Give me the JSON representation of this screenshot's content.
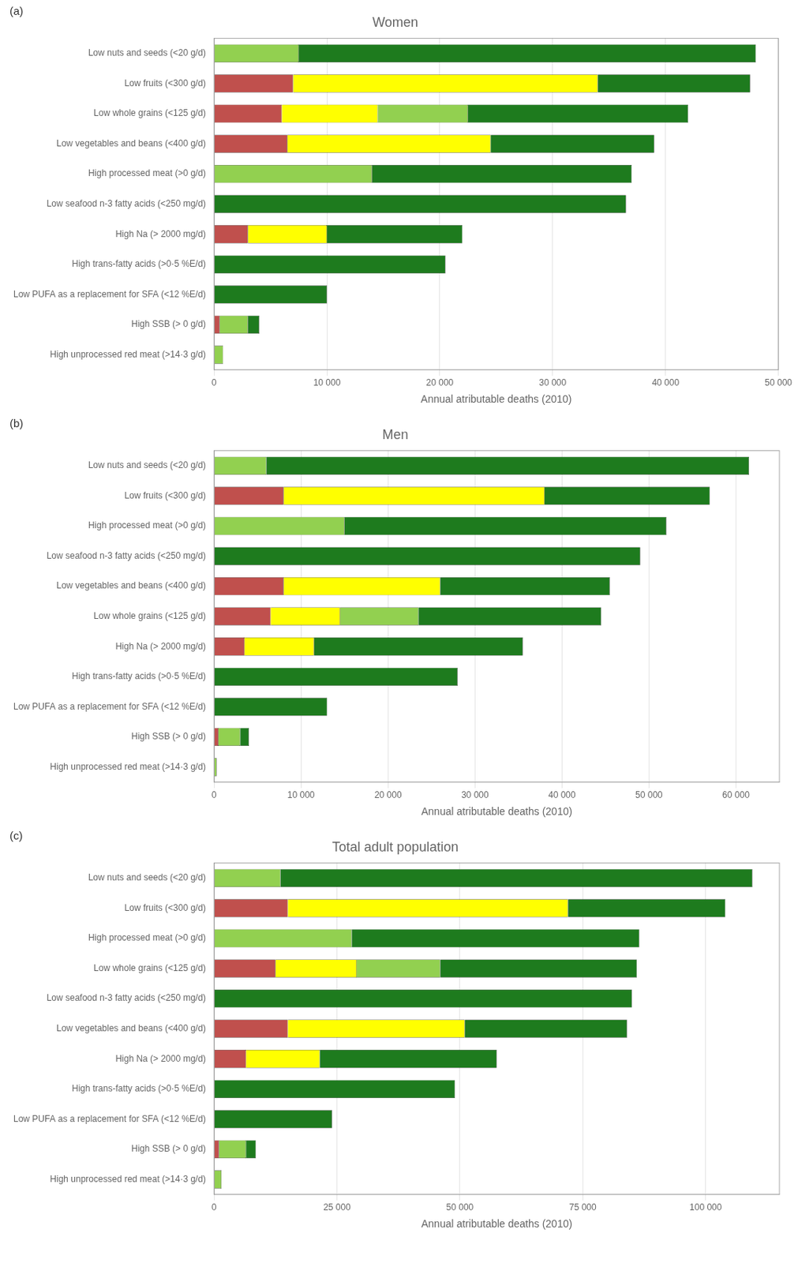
{
  "chart_data": [
    {
      "type": "bar",
      "orientation": "horizontal",
      "stacked": true,
      "grid": true,
      "annotation": "(a)",
      "title": "Women",
      "xlabel": "Annual atributable deaths (2010)",
      "xlim": [
        0,
        50000
      ],
      "xticks": [
        0,
        {
          "value": 10000,
          "label": "10 000"
        },
        {
          "value": 20000,
          "label": "20 000"
        },
        {
          "value": 30000,
          "label": "30 000"
        },
        {
          "value": 40000,
          "label": "40 000"
        },
        {
          "value": 50000,
          "label": "50 000"
        }
      ],
      "categories": [
        "Low nuts and seeds (<20 g/d)",
        "Low fruits (<300 g/d)",
        "Low whole grains (<125 g/d)",
        "Low vegetables and beans (<400 g/d)",
        "High processed meat (>0 g/d)",
        "Low seafood n-3 fatty acids (<250 mg/d)",
        "High Na (> 2000 mg/d)",
        "High trans-fatty acids (>0·5 %E/d)",
        "Low PUFA as a replacement for SFA (<12 %E/d)",
        "High SSB (> 0 g/d)",
        "High unprocessed red meat (>14·3 g/d)"
      ],
      "series": [
        {
          "color": "#c0504d",
          "values": [
            0,
            7000,
            6000,
            6500,
            0,
            0,
            3000,
            0,
            0,
            500,
            0
          ]
        },
        {
          "color": "#ffff00",
          "values": [
            0,
            27000,
            8500,
            18000,
            0,
            0,
            7000,
            0,
            0,
            0,
            0
          ]
        },
        {
          "color": "#92d050",
          "values": [
            7500,
            0,
            8000,
            0,
            14000,
            0,
            0,
            0,
            0,
            2500,
            800
          ]
        },
        {
          "color": "#1e7b1e",
          "values": [
            40500,
            13500,
            19500,
            14500,
            23000,
            36500,
            12000,
            20500,
            10000,
            1000,
            0
          ]
        }
      ]
    },
    {
      "type": "bar",
      "orientation": "horizontal",
      "stacked": true,
      "grid": true,
      "annotation": "(b)",
      "title": "Men",
      "xlabel": "Annual atributable deaths (2010)",
      "xlim": [
        0,
        65000
      ],
      "xticks": [
        0,
        {
          "value": 10000,
          "label": "10 000"
        },
        {
          "value": 20000,
          "label": "20 000"
        },
        {
          "value": 30000,
          "label": "30 000"
        },
        {
          "value": 40000,
          "label": "40 000"
        },
        {
          "value": 50000,
          "label": "50 000"
        },
        {
          "value": 60000,
          "label": "60 000"
        }
      ],
      "categories": [
        "Low nuts and seeds (<20 g/d)",
        "Low fruits (<300 g/d)",
        "High processed meat (>0 g/d)",
        "Low seafood n-3 fatty acids (<250 mg/d)",
        "Low vegetables and beans (<400 g/d)",
        "Low whole grains (<125 g/d)",
        "High Na (> 2000 mg/d)",
        "High trans-fatty acids (>0·5 %E/d)",
        "Low PUFA as a replacement for SFA (<12 %E/d)",
        "High SSB (> 0 g/d)",
        "High unprocessed red meat (>14·3 g/d)"
      ],
      "series": [
        {
          "color": "#c0504d",
          "values": [
            0,
            8000,
            0,
            0,
            8000,
            6500,
            3500,
            0,
            0,
            500,
            0
          ]
        },
        {
          "color": "#ffff00",
          "values": [
            0,
            30000,
            0,
            0,
            18000,
            8000,
            8000,
            0,
            0,
            0,
            0
          ]
        },
        {
          "color": "#92d050",
          "values": [
            6000,
            0,
            15000,
            0,
            0,
            9000,
            0,
            0,
            0,
            2500,
            300
          ]
        },
        {
          "color": "#1e7b1e",
          "values": [
            55500,
            19000,
            37000,
            49000,
            19500,
            21000,
            24000,
            28000,
            13000,
            1000,
            0
          ]
        }
      ]
    },
    {
      "type": "bar",
      "orientation": "horizontal",
      "stacked": true,
      "grid": true,
      "annotation": "(c)",
      "title": "Total adult population",
      "xlabel": "Annual atributable deaths (2010)",
      "xlim": [
        0,
        115000
      ],
      "xticks": [
        0,
        {
          "value": 25000,
          "label": "25 000"
        },
        {
          "value": 50000,
          "label": "50 000"
        },
        {
          "value": 75000,
          "label": "75 000"
        },
        {
          "value": 100000,
          "label": "100 000"
        }
      ],
      "categories": [
        "Low nuts and seeds (<20 g/d)",
        "Low fruits (<300 g/d)",
        "High processed meat (>0 g/d)",
        "Low whole grains (<125 g/d)",
        "Low seafood n-3 fatty acids (<250 mg/d)",
        "Low vegetables and beans (<400 g/d)",
        "High Na (> 2000 mg/d)",
        "High trans-fatty acids (>0·5 %E/d)",
        "Low PUFA as a replacement for SFA (<12 %E/d)",
        "High SSB (> 0 g/d)",
        "High unprocessed red meat (>14·3 g/d)"
      ],
      "series": [
        {
          "color": "#c0504d",
          "values": [
            0,
            15000,
            0,
            12500,
            0,
            15000,
            6500,
            0,
            0,
            1000,
            0
          ]
        },
        {
          "color": "#ffff00",
          "values": [
            0,
            57000,
            0,
            16500,
            0,
            36000,
            15000,
            0,
            0,
            0,
            0
          ]
        },
        {
          "color": "#92d050",
          "values": [
            13500,
            0,
            28000,
            17000,
            0,
            0,
            0,
            0,
            0,
            5500,
            1500
          ]
        },
        {
          "color": "#1e7b1e",
          "values": [
            96000,
            32000,
            58500,
            40000,
            85000,
            33000,
            36000,
            49000,
            24000,
            2000,
            0
          ]
        }
      ]
    }
  ]
}
